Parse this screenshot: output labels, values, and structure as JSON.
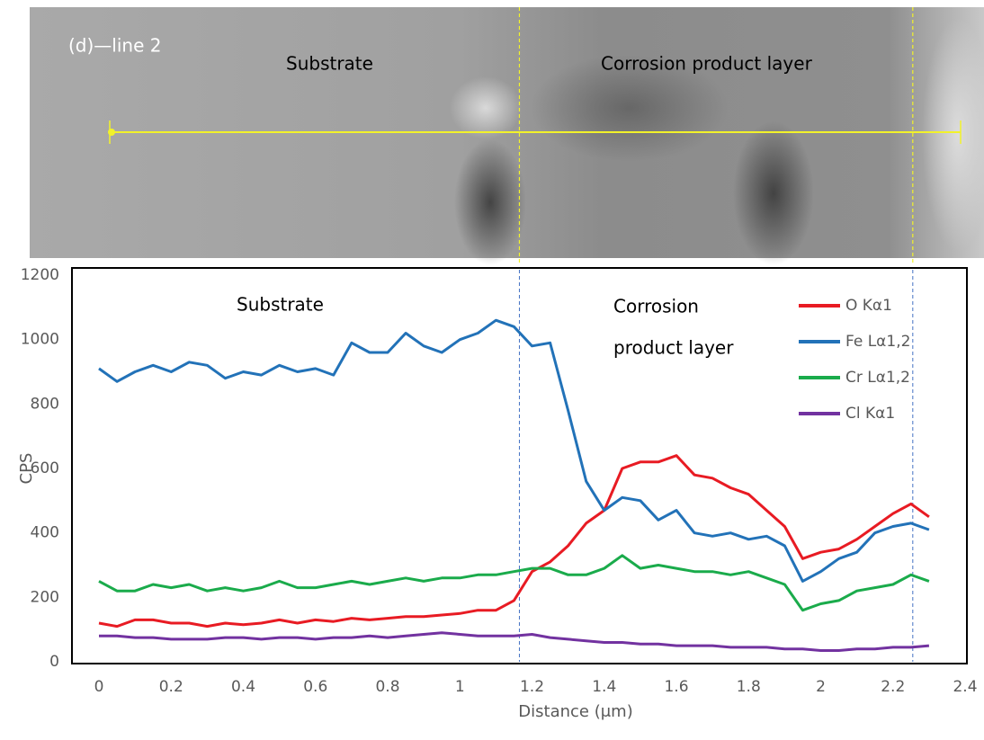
{
  "image": {
    "label": "(d)—line 2",
    "regions": [
      "Substrate",
      "Corrosion product layer"
    ]
  },
  "chart_data": {
    "type": "line",
    "xlabel": "Distance (μm)",
    "ylabel": "CPS",
    "xlim": [
      0,
      2.4
    ],
    "xticks": [
      0,
      0.2,
      0.4,
      0.6,
      0.8,
      1,
      1.2,
      1.4,
      1.6,
      1.8,
      2,
      2.2,
      2.4
    ],
    "ylim": [
      0,
      1200
    ],
    "yticks": [
      0,
      200,
      400,
      600,
      800,
      1000,
      1200
    ],
    "grid": false,
    "legend": "upper right",
    "annotations": [
      "Substrate",
      "Corrosion",
      "product layer"
    ],
    "reference_lines": [
      1.165,
      2.255
    ],
    "x": [
      0,
      0.05,
      0.1,
      0.15,
      0.2,
      0.25,
      0.3,
      0.35,
      0.4,
      0.45,
      0.5,
      0.55,
      0.6,
      0.65,
      0.7,
      0.75,
      0.8,
      0.85,
      0.9,
      0.95,
      1.0,
      1.05,
      1.1,
      1.15,
      1.2,
      1.25,
      1.3,
      1.35,
      1.4,
      1.45,
      1.5,
      1.55,
      1.6,
      1.65,
      1.7,
      1.75,
      1.8,
      1.85,
      1.9,
      1.95,
      2.0,
      2.05,
      2.1,
      2.15,
      2.2,
      2.25,
      2.3
    ],
    "series": [
      {
        "name": "O Kα1",
        "color": "#e81b23",
        "values": [
          120,
          110,
          130,
          130,
          120,
          120,
          110,
          120,
          115,
          120,
          130,
          120,
          130,
          125,
          135,
          130,
          135,
          140,
          140,
          145,
          150,
          160,
          160,
          190,
          280,
          310,
          360,
          430,
          470,
          600,
          620,
          620,
          640,
          580,
          570,
          540,
          520,
          470,
          420,
          320,
          340,
          350,
          380,
          420,
          460,
          490,
          450
        ]
      },
      {
        "name": "Fe Lα1,2",
        "color": "#2272b8",
        "values": [
          910,
          870,
          900,
          920,
          900,
          930,
          920,
          880,
          900,
          890,
          920,
          900,
          910,
          890,
          990,
          960,
          960,
          1020,
          980,
          960,
          1000,
          1020,
          1060,
          1040,
          980,
          990,
          780,
          560,
          470,
          510,
          500,
          440,
          470,
          400,
          390,
          400,
          380,
          390,
          360,
          250,
          280,
          320,
          340,
          400,
          420,
          430,
          410
        ]
      },
      {
        "name": "Cr Lα1,2",
        "color": "#1aab4b",
        "values": [
          250,
          220,
          220,
          240,
          230,
          240,
          220,
          230,
          220,
          230,
          250,
          230,
          230,
          240,
          250,
          240,
          250,
          260,
          250,
          260,
          260,
          270,
          270,
          280,
          290,
          290,
          270,
          270,
          290,
          330,
          290,
          300,
          290,
          280,
          280,
          270,
          280,
          260,
          240,
          160,
          180,
          190,
          220,
          230,
          240,
          270,
          250
        ]
      },
      {
        "name": "Cl Kα1",
        "color": "#7232a0",
        "values": [
          80,
          80,
          75,
          75,
          70,
          70,
          70,
          75,
          75,
          70,
          75,
          75,
          70,
          75,
          75,
          80,
          75,
          80,
          85,
          90,
          85,
          80,
          80,
          80,
          85,
          75,
          70,
          65,
          60,
          60,
          55,
          55,
          50,
          50,
          50,
          45,
          45,
          45,
          40,
          40,
          35,
          35,
          40,
          40,
          45,
          45,
          50
        ]
      }
    ]
  }
}
